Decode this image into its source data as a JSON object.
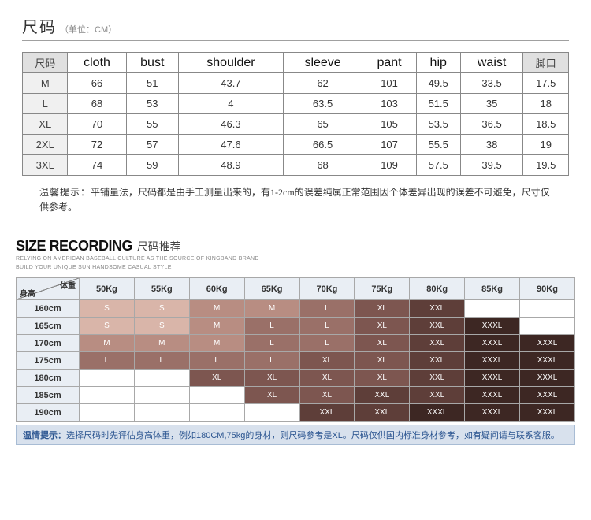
{
  "section1": {
    "title": "尺码",
    "subtitle": "（单位：CM）",
    "columns": [
      "尺码",
      "cloth",
      "bust",
      "shoulder",
      "sleeve",
      "pant",
      "hip",
      "waist",
      "脚口"
    ],
    "rows": [
      [
        "M",
        "66",
        "51",
        "43.7",
        "62",
        "101",
        "49.5",
        "33.5",
        "17.5"
      ],
      [
        "L",
        "68",
        "53",
        "4",
        "63.5",
        "103",
        "51.5",
        "35",
        "18"
      ],
      [
        "XL",
        "70",
        "55",
        "46.3",
        "65",
        "105",
        "53.5",
        "36.5",
        "18.5"
      ],
      [
        "2XL",
        "72",
        "57",
        "47.6",
        "66.5",
        "107",
        "55.5",
        "38",
        "19"
      ],
      [
        "3XL",
        "74",
        "59",
        "48.9",
        "68",
        "109",
        "57.5",
        "39.5",
        "19.5"
      ]
    ],
    "tip_label": "温馨提示：",
    "tip_text": "平铺量法，尺码都是由手工测量出来的，有1-2cm的误差纯属正常范围因个体差异出现的误差不可避免，尺寸仅供参考。"
  },
  "section2": {
    "heading_en": "SIZE RECORDING",
    "heading_cn": "尺码推荐",
    "sub1": "RELYING ON AMERICAN BASEBALL CULTURE AS THE SOURCE OF KINGBAND BRAND",
    "sub2": "BUILD YOUR UNIQUE SUN HANDSOME CASUAL STYLE",
    "corner_top": "体重",
    "corner_bot": "身高",
    "weights": [
      "50Kg",
      "55Kg",
      "60Kg",
      "65Kg",
      "70Kg",
      "75Kg",
      "80Kg",
      "85Kg",
      "90Kg"
    ],
    "heights": [
      "160cm",
      "165cm",
      "170cm",
      "175cm",
      "180cm",
      "185cm",
      "190cm"
    ],
    "grid": [
      [
        "S",
        "S",
        "M",
        "M",
        "L",
        "XL",
        "XXL",
        "",
        ""
      ],
      [
        "S",
        "S",
        "M",
        "L",
        "L",
        "XL",
        "XXL",
        "XXXL",
        ""
      ],
      [
        "M",
        "M",
        "M",
        "L",
        "L",
        "XL",
        "XXL",
        "XXXL",
        "XXXL"
      ],
      [
        "L",
        "L",
        "L",
        "L",
        "XL",
        "XL",
        "XXL",
        "XXXL",
        "XXXL"
      ],
      [
        "",
        "",
        "XL",
        "XL",
        "XL",
        "XL",
        "XXL",
        "XXXL",
        "XXXL"
      ],
      [
        "",
        "",
        "",
        "XL",
        "XL",
        "XXL",
        "XXL",
        "XXXL",
        "XXXL"
      ],
      [
        "",
        "",
        "",
        "",
        "XXL",
        "XXL",
        "XXXL",
        "XXXL",
        "XXXL"
      ]
    ],
    "colors": {
      "S": "#d9b5a9",
      "M": "#b88d82",
      "L": "#9a7068",
      "XL": "#7d5650",
      "XXL": "#5e3e39",
      "XXXL": "#3d2723",
      "": "#ffffff"
    },
    "tip_label": "温情提示：",
    "tip_text": "选择尺码时先评估身高体重，例如180CM,75kg的身材，则尺码参考是XL。尺码仅供国内标准身材参考，如有疑问请与联系客服。"
  }
}
